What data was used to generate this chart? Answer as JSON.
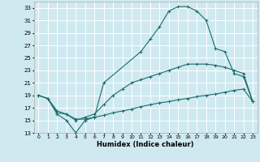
{
  "xlabel": "Humidex (Indice chaleur)",
  "bg_color": "#cfe9f0",
  "line_color": "#1a6b6b",
  "grid_color": "#ffffff",
  "xlim": [
    -0.5,
    23.5
  ],
  "ylim": [
    13,
    34
  ],
  "yticks": [
    13,
    15,
    17,
    19,
    21,
    23,
    25,
    27,
    29,
    31,
    33
  ],
  "xticks": [
    0,
    1,
    2,
    3,
    4,
    5,
    6,
    7,
    8,
    9,
    10,
    11,
    12,
    13,
    14,
    15,
    16,
    17,
    18,
    19,
    20,
    21,
    22,
    23
  ],
  "line1_x": [
    0,
    1,
    2,
    3,
    4,
    5,
    6,
    7,
    8,
    9,
    10,
    11,
    12,
    13,
    14,
    15,
    16,
    17,
    18,
    19,
    20,
    21,
    22,
    23
  ],
  "line1_y": [
    19.0,
    18.5,
    16.2,
    16.0,
    15.2,
    15.2,
    15.5,
    15.8,
    16.2,
    16.5,
    16.8,
    17.2,
    17.5,
    17.8,
    18.0,
    18.3,
    18.5,
    18.8,
    19.0,
    19.2,
    19.5,
    19.8,
    20.0,
    18.0
  ],
  "line2_x": [
    0,
    1,
    2,
    3,
    4,
    5,
    6,
    7,
    8,
    9,
    10,
    11,
    12,
    13,
    14,
    15,
    16,
    17,
    18,
    19,
    20,
    21,
    22,
    23
  ],
  "line2_y": [
    19.0,
    18.5,
    16.5,
    16.0,
    15.0,
    15.5,
    16.0,
    17.5,
    19.0,
    20.0,
    21.0,
    21.5,
    22.0,
    22.5,
    23.0,
    23.5,
    24.0,
    24.0,
    24.0,
    23.8,
    23.5,
    23.0,
    22.5,
    18.0
  ],
  "line3_x": [
    0,
    1,
    2,
    3,
    4,
    5,
    6,
    7,
    11,
    12,
    13,
    14,
    15,
    16,
    17,
    18,
    19,
    20,
    21,
    22,
    23
  ],
  "line3_y": [
    19.0,
    18.5,
    16.0,
    15.0,
    13.0,
    15.0,
    15.5,
    21.0,
    26.0,
    28.0,
    30.0,
    32.5,
    33.2,
    33.2,
    32.5,
    31.0,
    26.5,
    26.0,
    22.5,
    22.0,
    18.0
  ]
}
